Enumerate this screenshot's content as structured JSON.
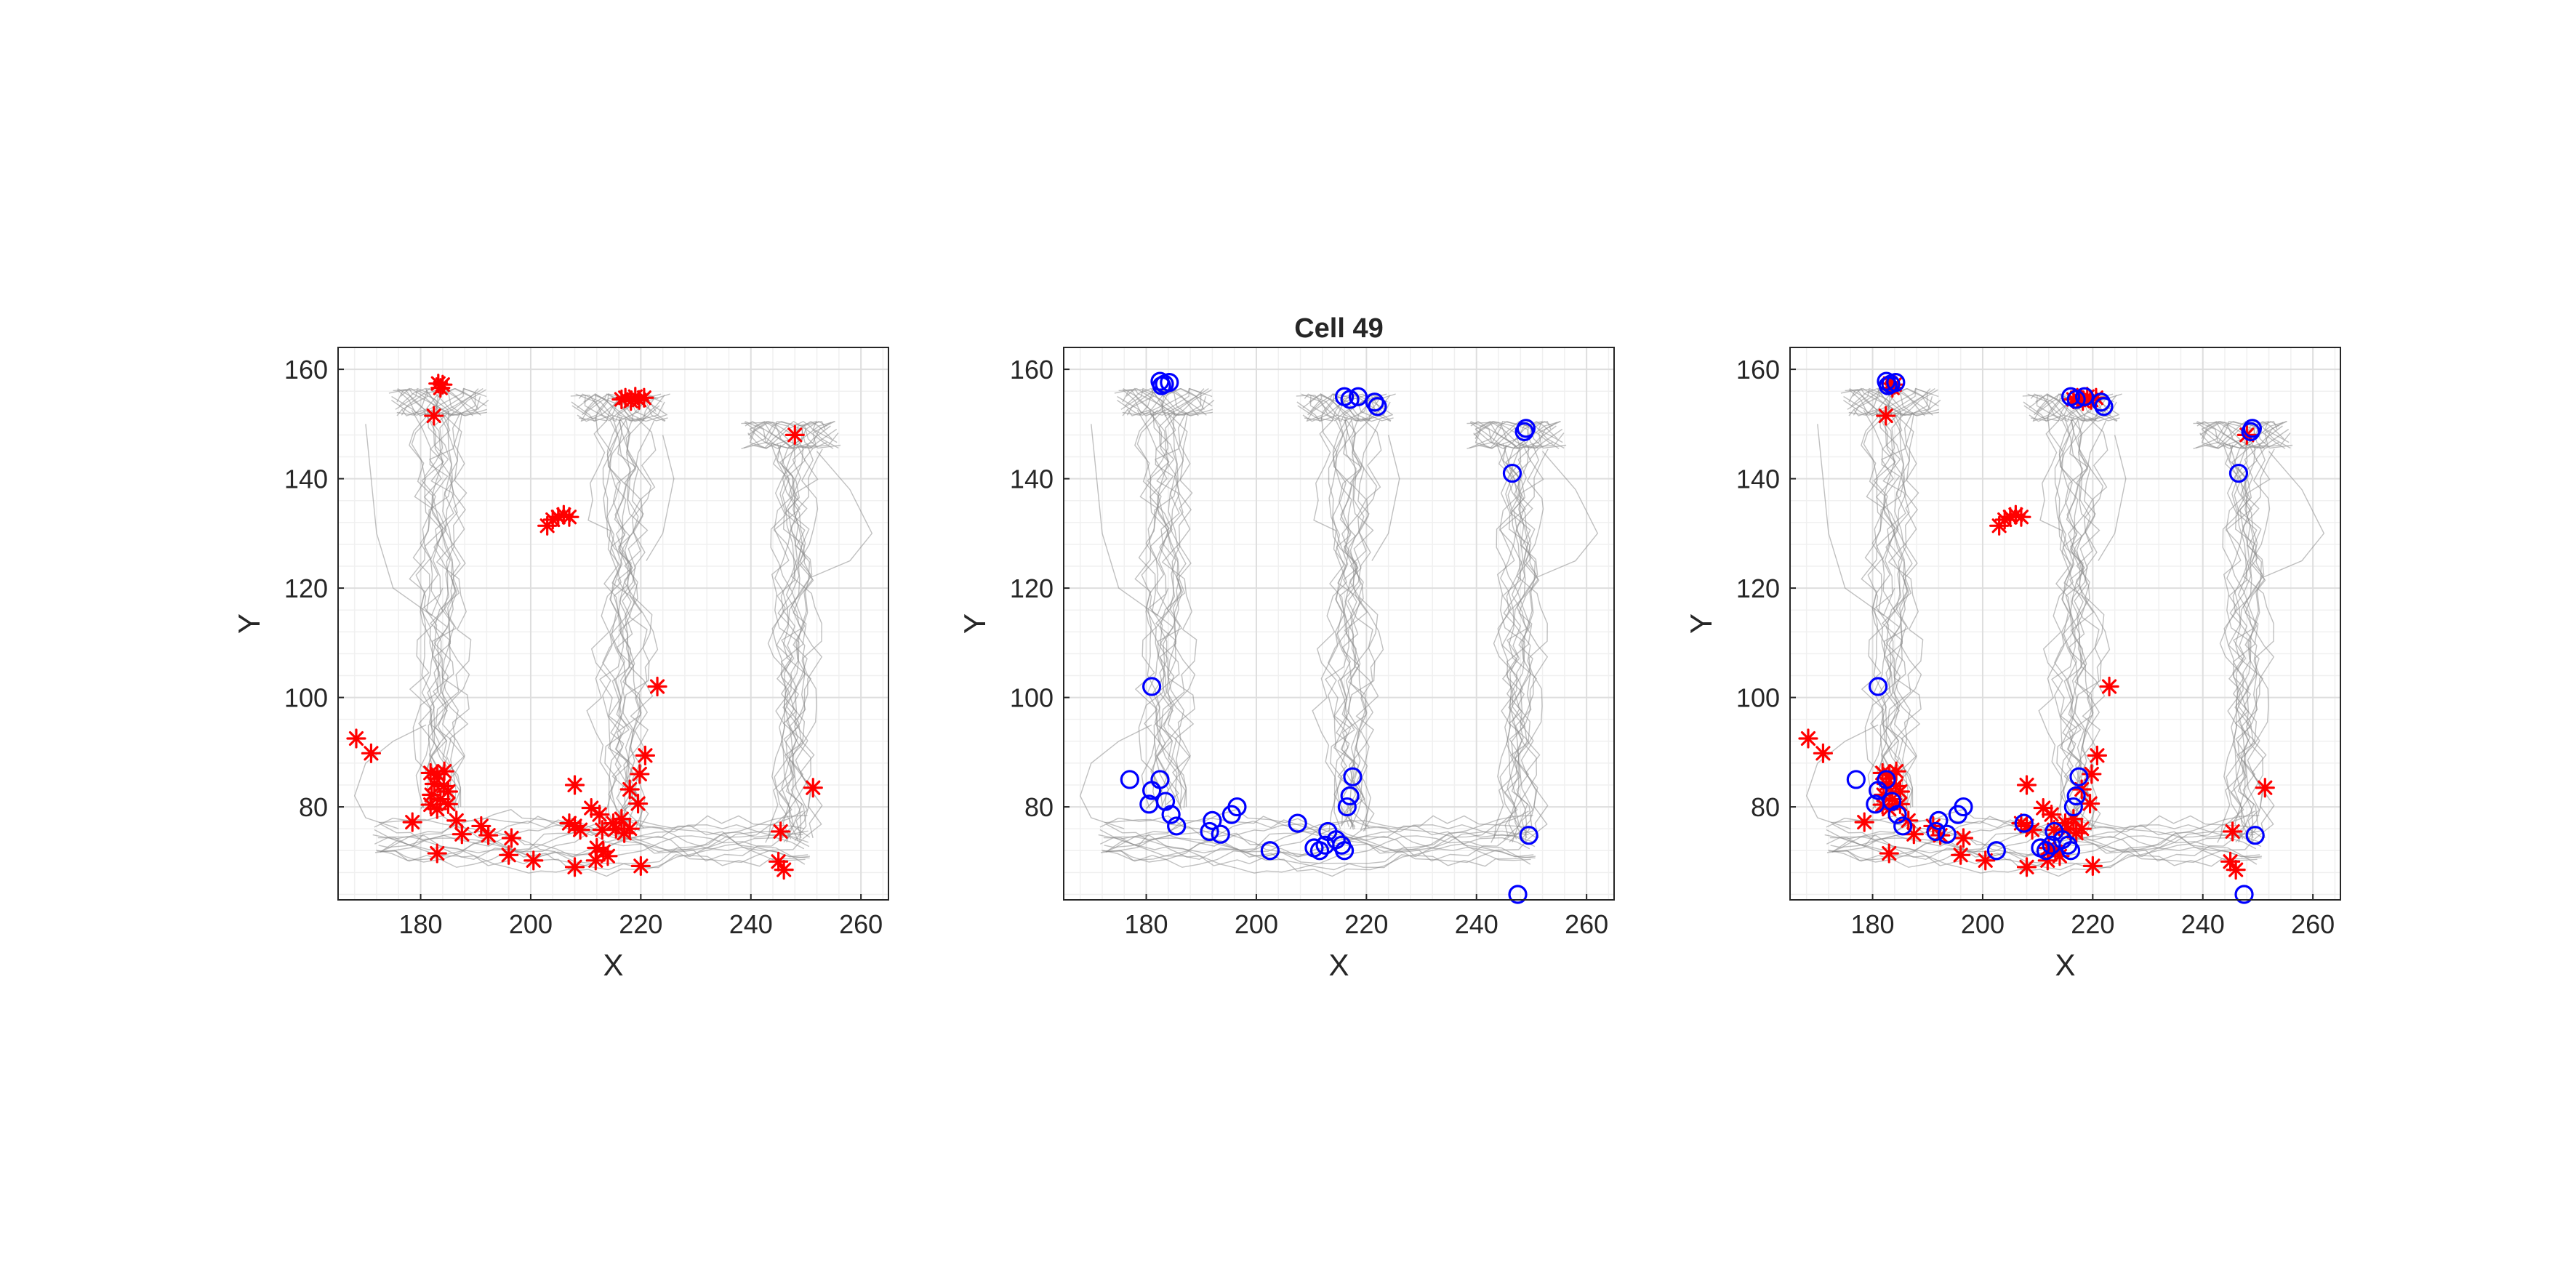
{
  "figure_title": "Cell 49",
  "colors": {
    "spike_star": "#ff0000",
    "event_circle": "#0000ff",
    "trajectory": "#8c8c8c",
    "grid_major": "#dedede",
    "grid_minor": "#f0f0f0",
    "axis_box": "#262626"
  },
  "chart_data": [
    {
      "type": "scatter",
      "title": "",
      "xlabel": "X",
      "ylabel": "Y",
      "xlim": [
        165,
        265
      ],
      "ylim": [
        63,
        164
      ],
      "xticks": [
        180,
        200,
        220,
        240,
        260
      ],
      "yticks": [
        80,
        100,
        120,
        140,
        160
      ],
      "grid": "on (major and minor)",
      "legend": "none",
      "background": "trajectory traces (gray)",
      "series": [
        {
          "marker": "*",
          "color": "#ff0000",
          "points": [
            [
              183.2,
              157.4
            ],
            [
              184.0,
              157.2
            ],
            [
              183.6,
              156.6
            ],
            [
              182.4,
              151.5
            ],
            [
              216.5,
              154.5
            ],
            [
              217.2,
              154.8
            ],
            [
              218.2,
              154.2
            ],
            [
              219.0,
              155.0
            ],
            [
              219.7,
              154.4
            ],
            [
              220.6,
              154.8
            ],
            [
              248.0,
              148.0
            ],
            [
              204.0,
              132.5
            ],
            [
              205.0,
              133.0
            ],
            [
              206.0,
              133.4
            ],
            [
              207.0,
              133.0
            ],
            [
              203.0,
              131.4
            ],
            [
              168.3,
              92.5
            ],
            [
              171.0,
              89.8
            ],
            [
              223.0,
              102.0
            ],
            [
              181.8,
              86.2
            ],
            [
              183.0,
              86.0
            ],
            [
              184.3,
              86.5
            ],
            [
              182.5,
              84.2
            ],
            [
              184.2,
              83.8
            ],
            [
              182.0,
              82.2
            ],
            [
              183.6,
              81.4
            ],
            [
              185.0,
              82.8
            ],
            [
              181.8,
              80.4
            ],
            [
              183.0,
              79.6
            ],
            [
              185.0,
              80.5
            ],
            [
              220.8,
              89.4
            ],
            [
              219.8,
              86.0
            ],
            [
              218.0,
              83.2
            ],
            [
              219.5,
              80.6
            ],
            [
              208.0,
              84.0
            ],
            [
              178.5,
              77.2
            ],
            [
              186.5,
              77.5
            ],
            [
              187.5,
              75.0
            ],
            [
              191.0,
              76.5
            ],
            [
              192.3,
              74.8
            ],
            [
              196.5,
              74.3
            ],
            [
              183.0,
              71.5
            ],
            [
              196.0,
              71.2
            ],
            [
              200.5,
              70.2
            ],
            [
              207.0,
              77.0
            ],
            [
              208.0,
              76.5
            ],
            [
              209.0,
              75.8
            ],
            [
              211.0,
              79.8
            ],
            [
              212.5,
              78.6
            ],
            [
              213.0,
              75.8
            ],
            [
              215.0,
              77.0
            ],
            [
              215.5,
              76.0
            ],
            [
              216.5,
              77.8
            ],
            [
              217.0,
              75.2
            ],
            [
              218.0,
              76.0
            ],
            [
              212.0,
              72.5
            ],
            [
              213.2,
              71.8
            ],
            [
              214.0,
              71.0
            ],
            [
              211.8,
              70.2
            ],
            [
              208.0,
              69.0
            ],
            [
              220.0,
              69.2
            ],
            [
              251.3,
              83.5
            ],
            [
              245.4,
              75.5
            ],
            [
              245.0,
              70.0
            ],
            [
              246.0,
              68.5
            ]
          ]
        }
      ]
    },
    {
      "type": "scatter",
      "title": "Cell 49",
      "xlabel": "X",
      "ylabel": "Y",
      "xlim": [
        165,
        265
      ],
      "ylim": [
        63,
        164
      ],
      "xticks": [
        180,
        200,
        220,
        240,
        260
      ],
      "yticks": [
        80,
        100,
        120,
        140,
        160
      ],
      "grid": "on (major and minor)",
      "legend": "none",
      "background": "trajectory traces (gray)",
      "series": [
        {
          "marker": "o",
          "color": "#0000ff",
          "points": [
            [
              182.5,
              157.8
            ],
            [
              183.3,
              157.3
            ],
            [
              184.2,
              157.6
            ],
            [
              182.8,
              157.0
            ],
            [
              216.0,
              155.0
            ],
            [
              217.0,
              154.5
            ],
            [
              218.5,
              155.0
            ],
            [
              221.5,
              154.0
            ],
            [
              222.0,
              153.2
            ],
            [
              249.0,
              149.2
            ],
            [
              248.7,
              148.6
            ],
            [
              246.5,
              141.0
            ],
            [
              181.0,
              102.0
            ],
            [
              177.0,
              85.0
            ],
            [
              181.0,
              83.0
            ],
            [
              182.5,
              85.0
            ],
            [
              180.5,
              80.5
            ],
            [
              183.5,
              81.0
            ],
            [
              184.5,
              78.6
            ],
            [
              185.5,
              76.5
            ],
            [
              196.5,
              80.0
            ],
            [
              195.5,
              78.6
            ],
            [
              192.0,
              77.5
            ],
            [
              191.5,
              75.5
            ],
            [
              193.5,
              75.0
            ],
            [
              202.5,
              72.0
            ],
            [
              207.5,
              77.0
            ],
            [
              217.5,
              85.5
            ],
            [
              217.0,
              82.0
            ],
            [
              216.5,
              80.0
            ],
            [
              213.0,
              75.5
            ],
            [
              214.5,
              74.0
            ],
            [
              215.5,
              73.0
            ],
            [
              216.0,
              72.0
            ],
            [
              212.5,
              73.0
            ],
            [
              211.5,
              72.0
            ],
            [
              210.5,
              72.5
            ],
            [
              249.5,
              74.8
            ],
            [
              247.5,
              64.0
            ]
          ]
        }
      ]
    },
    {
      "type": "scatter",
      "title": "",
      "xlabel": "X",
      "ylabel": "Y",
      "xlim": [
        165,
        265
      ],
      "ylim": [
        63,
        164
      ],
      "xticks": [
        180,
        200,
        220,
        240,
        260
      ],
      "yticks": [
        80,
        100,
        120,
        140,
        160
      ],
      "grid": "on (major and minor)",
      "legend": "none",
      "background": "trajectory traces (gray)",
      "series": [
        {
          "marker": "*",
          "color": "#ff0000",
          "points": [
            [
              183.2,
              157.4
            ],
            [
              184.0,
              157.2
            ],
            [
              183.6,
              156.6
            ],
            [
              182.4,
              151.5
            ],
            [
              216.5,
              154.5
            ],
            [
              217.2,
              154.8
            ],
            [
              218.2,
              154.2
            ],
            [
              219.0,
              155.0
            ],
            [
              219.7,
              154.4
            ],
            [
              220.6,
              154.8
            ],
            [
              248.0,
              148.0
            ],
            [
              204.0,
              132.5
            ],
            [
              205.0,
              133.0
            ],
            [
              206.0,
              133.4
            ],
            [
              207.0,
              133.0
            ],
            [
              203.0,
              131.4
            ],
            [
              168.3,
              92.5
            ],
            [
              171.0,
              89.8
            ],
            [
              223.0,
              102.0
            ],
            [
              181.8,
              86.2
            ],
            [
              183.0,
              86.0
            ],
            [
              184.3,
              86.5
            ],
            [
              182.5,
              84.2
            ],
            [
              184.2,
              83.8
            ],
            [
              182.0,
              82.2
            ],
            [
              183.6,
              81.4
            ],
            [
              185.0,
              82.8
            ],
            [
              181.8,
              80.4
            ],
            [
              183.0,
              79.6
            ],
            [
              185.0,
              80.5
            ],
            [
              220.8,
              89.4
            ],
            [
              219.8,
              86.0
            ],
            [
              218.0,
              83.2
            ],
            [
              219.5,
              80.6
            ],
            [
              208.0,
              84.0
            ],
            [
              178.5,
              77.2
            ],
            [
              186.5,
              77.5
            ],
            [
              187.5,
              75.0
            ],
            [
              191.0,
              76.5
            ],
            [
              192.3,
              74.8
            ],
            [
              196.5,
              74.3
            ],
            [
              183.0,
              71.5
            ],
            [
              196.0,
              71.2
            ],
            [
              200.5,
              70.2
            ],
            [
              207.0,
              77.0
            ],
            [
              208.0,
              76.5
            ],
            [
              209.0,
              75.8
            ],
            [
              211.0,
              79.8
            ],
            [
              212.5,
              78.6
            ],
            [
              213.0,
              75.8
            ],
            [
              215.0,
              77.0
            ],
            [
              215.5,
              76.0
            ],
            [
              216.5,
              77.8
            ],
            [
              217.0,
              75.2
            ],
            [
              218.0,
              76.0
            ],
            [
              212.0,
              72.5
            ],
            [
              213.2,
              71.8
            ],
            [
              214.0,
              71.0
            ],
            [
              211.8,
              70.2
            ],
            [
              208.0,
              69.0
            ],
            [
              220.0,
              69.2
            ],
            [
              251.3,
              83.5
            ],
            [
              245.4,
              75.5
            ],
            [
              245.0,
              70.0
            ],
            [
              246.0,
              68.5
            ]
          ]
        },
        {
          "marker": "o",
          "color": "#0000ff",
          "points": [
            [
              182.5,
              157.8
            ],
            [
              183.3,
              157.3
            ],
            [
              184.2,
              157.6
            ],
            [
              182.8,
              157.0
            ],
            [
              216.0,
              155.0
            ],
            [
              217.0,
              154.5
            ],
            [
              218.5,
              155.0
            ],
            [
              221.5,
              154.0
            ],
            [
              222.0,
              153.2
            ],
            [
              249.0,
              149.2
            ],
            [
              248.7,
              148.6
            ],
            [
              246.5,
              141.0
            ],
            [
              181.0,
              102.0
            ],
            [
              177.0,
              85.0
            ],
            [
              181.0,
              83.0
            ],
            [
              182.5,
              85.0
            ],
            [
              180.5,
              80.5
            ],
            [
              183.5,
              81.0
            ],
            [
              184.5,
              78.6
            ],
            [
              185.5,
              76.5
            ],
            [
              196.5,
              80.0
            ],
            [
              195.5,
              78.6
            ],
            [
              192.0,
              77.5
            ],
            [
              191.5,
              75.5
            ],
            [
              193.5,
              75.0
            ],
            [
              202.5,
              72.0
            ],
            [
              207.5,
              77.0
            ],
            [
              217.5,
              85.5
            ],
            [
              217.0,
              82.0
            ],
            [
              216.5,
              80.0
            ],
            [
              213.0,
              75.5
            ],
            [
              214.5,
              74.0
            ],
            [
              215.5,
              73.0
            ],
            [
              216.0,
              72.0
            ],
            [
              212.5,
              73.0
            ],
            [
              211.5,
              72.0
            ],
            [
              210.5,
              72.5
            ],
            [
              249.5,
              74.8
            ],
            [
              247.5,
              64.0
            ]
          ]
        }
      ]
    }
  ]
}
